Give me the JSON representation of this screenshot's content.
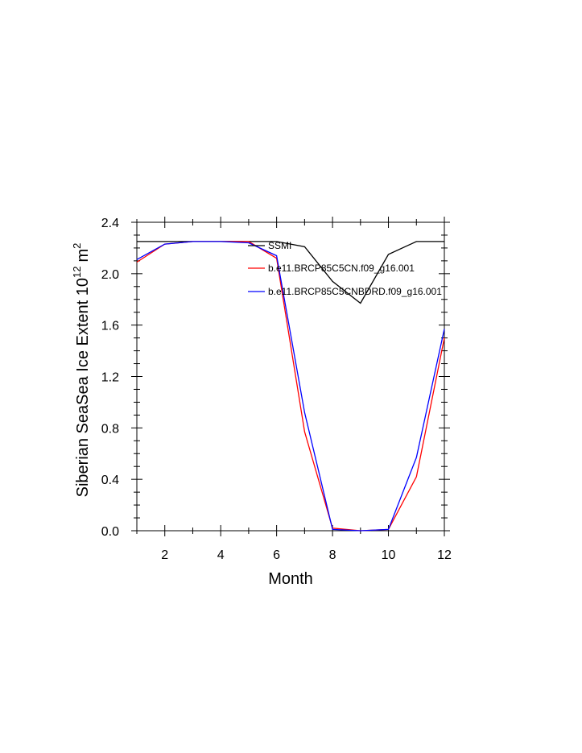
{
  "chart_data": {
    "type": "line",
    "xlabel": "Month",
    "ylabel_main": "Siberian SeaSea Ice Extent 10",
    "ylabel_exp": "12",
    "ylabel_unit": "m",
    "ylabel_unit_exp": "2",
    "xlim": [
      1,
      12
    ],
    "ylim": [
      0,
      2.4
    ],
    "xticks": [
      2,
      4,
      6,
      8,
      10,
      12
    ],
    "yticks": [
      "0.0",
      "0.4",
      "0.8",
      "1.2",
      "1.6",
      "2.0",
      "2.4"
    ],
    "x": [
      1,
      2,
      3,
      4,
      5,
      6,
      7,
      8,
      9,
      10,
      11,
      12
    ],
    "legend_position": "top-right (inside plot)",
    "series": [
      {
        "name": "SSMI",
        "color": "#000000",
        "values": [
          2.25,
          2.25,
          2.25,
          2.25,
          2.25,
          2.25,
          2.21,
          1.94,
          1.77,
          2.15,
          2.25,
          2.25
        ]
      },
      {
        "name": "b.e11.BRCP85C5CN.f09_g16.001",
        "color": "#ff0000",
        "values": [
          2.09,
          2.23,
          2.25,
          2.25,
          2.25,
          2.12,
          0.77,
          0.02,
          0.0,
          0.01,
          0.42,
          1.5
        ]
      },
      {
        "name": "b.e11.BRCP85C5CNBDRD.f09_g16.001",
        "color": "#0000ff",
        "values": [
          2.11,
          2.23,
          2.25,
          2.25,
          2.24,
          2.14,
          0.92,
          0.01,
          0.0,
          0.01,
          0.57,
          1.57
        ]
      }
    ]
  }
}
